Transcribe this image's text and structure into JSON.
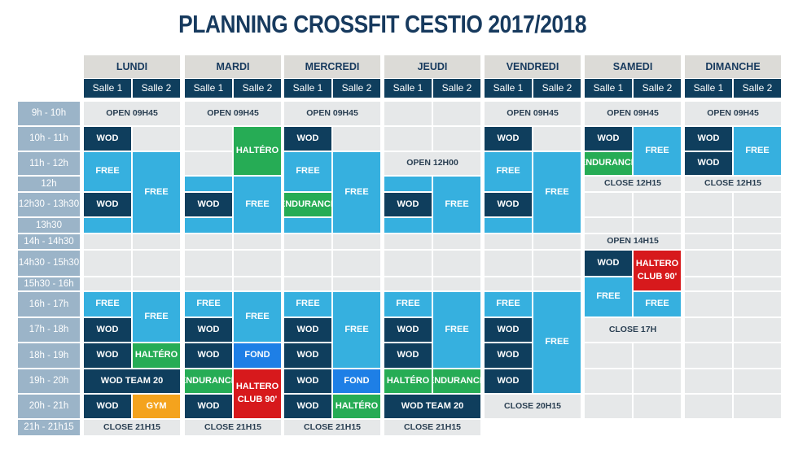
{
  "title": "PLANNING CROSSFIT CESTIO 2017/2018",
  "days": [
    "LUNDI",
    "MARDI",
    "MERCREDI",
    "JEUDI",
    "VENDREDI",
    "SAMEDI",
    "DIMANCHE"
  ],
  "salles": [
    "Salle 1",
    "Salle 2"
  ],
  "time_slots": [
    "9h - 10h",
    "10h - 11h",
    "11h - 12h",
    "12h",
    "12h30 - 13h30",
    "13h30",
    "14h - 14h30",
    "14h30 - 15h30",
    "15h30 - 16h",
    "16h - 17h",
    "17h - 18h",
    "18h - 19h",
    "19h - 20h",
    "20h - 21h",
    "21h - 21h15"
  ],
  "colors": {
    "title": "#173a5e",
    "salle_header": "#0f3e5d",
    "time_column": "#9bb4c8",
    "empty": "#e6e8e9",
    "wod": "#0f3e5d",
    "free": "#36b0df",
    "green": "#26ac55",
    "red": "#d7191c",
    "orange": "#f4a31d",
    "fond": "#1e7fe6"
  },
  "blocks": [
    {
      "day": 0,
      "salle": 0,
      "span": 2,
      "start": 0,
      "end": 1,
      "type": "label",
      "text": "OPEN 09H45"
    },
    {
      "day": 0,
      "salle": 0,
      "span": 1,
      "start": 1,
      "end": 2,
      "type": "wod",
      "text": "WOD"
    },
    {
      "day": 0,
      "salle": 0,
      "span": 1,
      "start": 2,
      "end": 4,
      "type": "free",
      "text": "FREE"
    },
    {
      "day": 0,
      "salle": 1,
      "span": 1,
      "start": 2,
      "end": 6,
      "type": "free",
      "text": "FREE"
    },
    {
      "day": 0,
      "salle": 0,
      "span": 1,
      "start": 4,
      "end": 5,
      "type": "wod",
      "text": "WOD"
    },
    {
      "day": 0,
      "salle": 0,
      "span": 1,
      "start": 5,
      "end": 6,
      "type": "free",
      "text": ""
    },
    {
      "day": 0,
      "salle": 0,
      "span": 1,
      "start": 9,
      "end": 10,
      "type": "free",
      "text": "FREE"
    },
    {
      "day": 0,
      "salle": 1,
      "span": 1,
      "start": 9,
      "end": 11,
      "type": "free",
      "text": "FREE"
    },
    {
      "day": 0,
      "salle": 0,
      "span": 1,
      "start": 10,
      "end": 11,
      "type": "wod",
      "text": "WOD"
    },
    {
      "day": 0,
      "salle": 0,
      "span": 1,
      "start": 11,
      "end": 12,
      "type": "wod",
      "text": "WOD"
    },
    {
      "day": 0,
      "salle": 1,
      "span": 1,
      "start": 11,
      "end": 12,
      "type": "green",
      "text": "HALTÉRO"
    },
    {
      "day": 0,
      "salle": 0,
      "span": 2,
      "start": 12,
      "end": 13,
      "type": "wod",
      "text": "WOD TEAM 20"
    },
    {
      "day": 0,
      "salle": 0,
      "span": 1,
      "start": 13,
      "end": 14,
      "type": "wod",
      "text": "WOD"
    },
    {
      "day": 0,
      "salle": 1,
      "span": 1,
      "start": 13,
      "end": 14,
      "type": "orange",
      "text": "GYM"
    },
    {
      "day": 0,
      "salle": 0,
      "span": 2,
      "start": 14,
      "end": 15,
      "type": "label",
      "text": "CLOSE 21H15"
    },
    {
      "day": 1,
      "salle": 0,
      "span": 2,
      "start": 0,
      "end": 1,
      "type": "label",
      "text": "OPEN 09H45"
    },
    {
      "day": 1,
      "salle": 1,
      "span": 1,
      "start": 1,
      "end": 3,
      "type": "green",
      "text": "HALTÉRO"
    },
    {
      "day": 1,
      "salle": 0,
      "span": 1,
      "start": 3,
      "end": 4,
      "type": "free",
      "text": ""
    },
    {
      "day": 1,
      "salle": 0,
      "span": 1,
      "start": 4,
      "end": 5,
      "type": "wod",
      "text": "WOD"
    },
    {
      "day": 1,
      "salle": 1,
      "span": 1,
      "start": 3,
      "end": 6,
      "type": "free",
      "text": "FREE"
    },
    {
      "day": 1,
      "salle": 0,
      "span": 1,
      "start": 5,
      "end": 6,
      "type": "free",
      "text": ""
    },
    {
      "day": 1,
      "salle": 0,
      "span": 1,
      "start": 9,
      "end": 10,
      "type": "free",
      "text": "FREE"
    },
    {
      "day": 1,
      "salle": 1,
      "span": 1,
      "start": 9,
      "end": 11,
      "type": "free",
      "text": "FREE"
    },
    {
      "day": 1,
      "salle": 0,
      "span": 1,
      "start": 10,
      "end": 11,
      "type": "wod",
      "text": "WOD"
    },
    {
      "day": 1,
      "salle": 0,
      "span": 1,
      "start": 11,
      "end": 12,
      "type": "wod",
      "text": "WOD"
    },
    {
      "day": 1,
      "salle": 1,
      "span": 1,
      "start": 11,
      "end": 12,
      "type": "fond",
      "text": "FOND"
    },
    {
      "day": 1,
      "salle": 0,
      "span": 1,
      "start": 12,
      "end": 13,
      "type": "green",
      "text": "ENDURANCE"
    },
    {
      "day": 1,
      "salle": 1,
      "span": 1,
      "start": 12,
      "end": 14,
      "type": "red",
      "text": "HALTERO CLUB 90'"
    },
    {
      "day": 1,
      "salle": 0,
      "span": 1,
      "start": 13,
      "end": 14,
      "type": "wod",
      "text": "WOD"
    },
    {
      "day": 1,
      "salle": 0,
      "span": 2,
      "start": 14,
      "end": 15,
      "type": "label",
      "text": "CLOSE 21H15"
    },
    {
      "day": 2,
      "salle": 0,
      "span": 2,
      "start": 0,
      "end": 1,
      "type": "label",
      "text": "OPEN 09H45"
    },
    {
      "day": 2,
      "salle": 0,
      "span": 1,
      "start": 1,
      "end": 2,
      "type": "wod",
      "text": "WOD"
    },
    {
      "day": 2,
      "salle": 0,
      "span": 1,
      "start": 2,
      "end": 4,
      "type": "free",
      "text": "FREE"
    },
    {
      "day": 2,
      "salle": 1,
      "span": 1,
      "start": 2,
      "end": 6,
      "type": "free",
      "text": "FREE"
    },
    {
      "day": 2,
      "salle": 0,
      "span": 1,
      "start": 4,
      "end": 5,
      "type": "green",
      "text": "ENDURANCE"
    },
    {
      "day": 2,
      "salle": 0,
      "span": 1,
      "start": 5,
      "end": 6,
      "type": "free",
      "text": ""
    },
    {
      "day": 2,
      "salle": 0,
      "span": 1,
      "start": 9,
      "end": 10,
      "type": "free",
      "text": "FREE"
    },
    {
      "day": 2,
      "salle": 1,
      "span": 1,
      "start": 9,
      "end": 12,
      "type": "free",
      "text": "FREE"
    },
    {
      "day": 2,
      "salle": 0,
      "span": 1,
      "start": 10,
      "end": 11,
      "type": "wod",
      "text": "WOD"
    },
    {
      "day": 2,
      "salle": 0,
      "span": 1,
      "start": 11,
      "end": 12,
      "type": "wod",
      "text": "WOD"
    },
    {
      "day": 2,
      "salle": 0,
      "span": 1,
      "start": 12,
      "end": 13,
      "type": "wod",
      "text": "WOD"
    },
    {
      "day": 2,
      "salle": 1,
      "span": 1,
      "start": 12,
      "end": 13,
      "type": "fond",
      "text": "FOND"
    },
    {
      "day": 2,
      "salle": 0,
      "span": 1,
      "start": 13,
      "end": 14,
      "type": "wod",
      "text": "WOD"
    },
    {
      "day": 2,
      "salle": 1,
      "span": 1,
      "start": 13,
      "end": 14,
      "type": "green",
      "text": "HALTÉRO"
    },
    {
      "day": 2,
      "salle": 0,
      "span": 2,
      "start": 14,
      "end": 15,
      "type": "label",
      "text": "CLOSE 21H15"
    },
    {
      "day": 3,
      "salle": 0,
      "span": 2,
      "start": 2,
      "end": 3,
      "type": "label",
      "text": "OPEN 12H00"
    },
    {
      "day": 3,
      "salle": 0,
      "span": 1,
      "start": 3,
      "end": 4,
      "type": "free",
      "text": ""
    },
    {
      "day": 3,
      "salle": 1,
      "span": 1,
      "start": 3,
      "end": 6,
      "type": "free",
      "text": "FREE"
    },
    {
      "day": 3,
      "salle": 0,
      "span": 1,
      "start": 4,
      "end": 5,
      "type": "wod",
      "text": "WOD"
    },
    {
      "day": 3,
      "salle": 0,
      "span": 1,
      "start": 5,
      "end": 6,
      "type": "free",
      "text": ""
    },
    {
      "day": 3,
      "salle": 0,
      "span": 1,
      "start": 9,
      "end": 10,
      "type": "free",
      "text": "FREE"
    },
    {
      "day": 3,
      "salle": 1,
      "span": 1,
      "start": 9,
      "end": 12,
      "type": "free",
      "text": "FREE"
    },
    {
      "day": 3,
      "salle": 0,
      "span": 1,
      "start": 10,
      "end": 11,
      "type": "wod",
      "text": "WOD"
    },
    {
      "day": 3,
      "salle": 0,
      "span": 1,
      "start": 11,
      "end": 12,
      "type": "wod",
      "text": "WOD"
    },
    {
      "day": 3,
      "salle": 0,
      "span": 1,
      "start": 12,
      "end": 13,
      "type": "green",
      "text": "HALTÉRO"
    },
    {
      "day": 3,
      "salle": 1,
      "span": 1,
      "start": 12,
      "end": 13,
      "type": "green",
      "text": "ENDURANCE"
    },
    {
      "day": 3,
      "salle": 0,
      "span": 2,
      "start": 13,
      "end": 14,
      "type": "wod",
      "text": "WOD TEAM 20"
    },
    {
      "day": 3,
      "salle": 0,
      "span": 2,
      "start": 14,
      "end": 15,
      "type": "label",
      "text": "CLOSE 21H15"
    },
    {
      "day": 4,
      "salle": 0,
      "span": 2,
      "start": 0,
      "end": 1,
      "type": "label",
      "text": "OPEN 09H45"
    },
    {
      "day": 4,
      "salle": 0,
      "span": 1,
      "start": 1,
      "end": 2,
      "type": "wod",
      "text": "WOD"
    },
    {
      "day": 4,
      "salle": 0,
      "span": 1,
      "start": 2,
      "end": 4,
      "type": "free",
      "text": "FREE"
    },
    {
      "day": 4,
      "salle": 1,
      "span": 1,
      "start": 2,
      "end": 6,
      "type": "free",
      "text": "FREE"
    },
    {
      "day": 4,
      "salle": 0,
      "span": 1,
      "start": 4,
      "end": 5,
      "type": "wod",
      "text": "WOD"
    },
    {
      "day": 4,
      "salle": 0,
      "span": 1,
      "start": 5,
      "end": 6,
      "type": "free",
      "text": ""
    },
    {
      "day": 4,
      "salle": 0,
      "span": 1,
      "start": 9,
      "end": 10,
      "type": "free",
      "text": "FREE"
    },
    {
      "day": 4,
      "salle": 1,
      "span": 1,
      "start": 9,
      "end": 13,
      "type": "free",
      "text": "FREE"
    },
    {
      "day": 4,
      "salle": 0,
      "span": 1,
      "start": 10,
      "end": 11,
      "type": "wod",
      "text": "WOD"
    },
    {
      "day": 4,
      "salle": 0,
      "span": 1,
      "start": 11,
      "end": 12,
      "type": "wod",
      "text": "WOD"
    },
    {
      "day": 4,
      "salle": 0,
      "span": 1,
      "start": 12,
      "end": 13,
      "type": "wod",
      "text": "WOD"
    },
    {
      "day": 4,
      "salle": 0,
      "span": 2,
      "start": 13,
      "end": 14,
      "type": "label",
      "text": "CLOSE 20H15"
    },
    {
      "day": 5,
      "salle": 0,
      "span": 2,
      "start": 0,
      "end": 1,
      "type": "label",
      "text": "OPEN 09H45"
    },
    {
      "day": 5,
      "salle": 0,
      "span": 1,
      "start": 1,
      "end": 2,
      "type": "wod",
      "text": "WOD"
    },
    {
      "day": 5,
      "salle": 1,
      "span": 1,
      "start": 1,
      "end": 3,
      "type": "free",
      "text": "FREE"
    },
    {
      "day": 5,
      "salle": 0,
      "span": 1,
      "start": 2,
      "end": 3,
      "type": "green",
      "text": "ENDURANCE"
    },
    {
      "day": 5,
      "salle": 0,
      "span": 2,
      "start": 3,
      "end": 4,
      "type": "label",
      "text": "CLOSE 12H15"
    },
    {
      "day": 5,
      "salle": 0,
      "span": 2,
      "start": 6,
      "end": 7,
      "type": "label",
      "text": "OPEN 14H15"
    },
    {
      "day": 5,
      "salle": 0,
      "span": 1,
      "start": 7,
      "end": 8,
      "type": "wod",
      "text": "WOD"
    },
    {
      "day": 5,
      "salle": 1,
      "span": 1,
      "start": 7,
      "end": 9,
      "type": "red",
      "text": "HALTERO CLUB 90'"
    },
    {
      "day": 5,
      "salle": 0,
      "span": 1,
      "start": 8,
      "end": 10,
      "type": "free",
      "text": "FREE"
    },
    {
      "day": 5,
      "salle": 1,
      "span": 1,
      "start": 9,
      "end": 10,
      "type": "free",
      "text": "FREE"
    },
    {
      "day": 5,
      "salle": 0,
      "span": 2,
      "start": 10,
      "end": 11,
      "type": "label",
      "text": "CLOSE 17H"
    },
    {
      "day": 6,
      "salle": 0,
      "span": 2,
      "start": 0,
      "end": 1,
      "type": "label",
      "text": "OPEN 09H45"
    },
    {
      "day": 6,
      "salle": 0,
      "span": 1,
      "start": 1,
      "end": 2,
      "type": "wod",
      "text": "WOD"
    },
    {
      "day": 6,
      "salle": 1,
      "span": 1,
      "start": 1,
      "end": 3,
      "type": "free",
      "text": "FREE"
    },
    {
      "day": 6,
      "salle": 0,
      "span": 1,
      "start": 2,
      "end": 3,
      "type": "wod",
      "text": "WOD"
    },
    {
      "day": 6,
      "salle": 0,
      "span": 2,
      "start": 3,
      "end": 4,
      "type": "label",
      "text": "CLOSE 12H15"
    }
  ]
}
